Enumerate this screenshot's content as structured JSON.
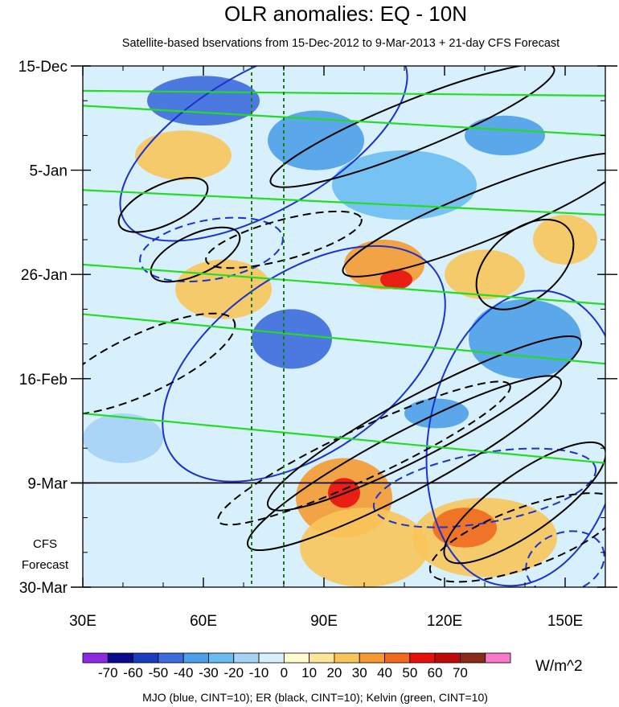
{
  "chart_data": {
    "type": "heatmap",
    "title": "OLR anomalies: EQ - 10N",
    "subtitle": "Satellite-based bservations from 15-Dec-2012 to 9-Mar-2013 + 21-day CFS Forecast",
    "x_axis": {
      "range": [
        30,
        160
      ],
      "units": "degrees longitude",
      "tick_values": [
        30,
        60,
        90,
        120,
        150
      ],
      "tick_labels": [
        "30E",
        "60E",
        "90E",
        "120E",
        "150E"
      ]
    },
    "y_axis": {
      "range_days": [
        0,
        105
      ],
      "tick_days": [
        0,
        21,
        42,
        63,
        84,
        105
      ],
      "tick_labels": [
        "15-Dec",
        "5-Jan",
        "26-Jan",
        "16-Feb",
        "9-Mar",
        "30-Mar"
      ],
      "observation_end_label": "9-Mar",
      "forecast_label_lines": [
        "CFS",
        "Forecast"
      ]
    },
    "colorbar": {
      "units": "W/m^2",
      "levels": [
        -70,
        -60,
        -50,
        -40,
        -30,
        -20,
        -10,
        0,
        10,
        20,
        30,
        40,
        50,
        60,
        70
      ],
      "colors": [
        "#8a2be2",
        "#0a0a8c",
        "#1a3dbe",
        "#3c6cdc",
        "#4d9fe8",
        "#6bbcf2",
        "#a6d2f5",
        "#d8f0fb",
        "#fffccf",
        "#fde59a",
        "#f8c55a",
        "#f59a32",
        "#f06a20",
        "#e80f0f",
        "#c00a0a",
        "#8c2a1a",
        "#f779c8"
      ]
    },
    "reference_lines": {
      "observation_end_day": 84,
      "dashed_green_longitudes": [
        72,
        80
      ]
    },
    "legend_text": "MJO (blue, CINT=10); ER (black, CINT=10); Kelvin (green, CINT=10)",
    "series": [
      {
        "name": "MJO",
        "color": "#1a33cc",
        "contour_interval": 10
      },
      {
        "name": "ER",
        "color": "#000000",
        "contour_interval": 10
      },
      {
        "name": "Kelvin",
        "color": "#22dd22",
        "contour_interval": 10
      }
    ],
    "anomaly_blobs": [
      {
        "lon": 60,
        "day": 7,
        "rlon": 14,
        "rday": 5,
        "level": -50
      },
      {
        "lon": 88,
        "day": 15,
        "rlon": 12,
        "rday": 6,
        "level": -40
      },
      {
        "lon": 110,
        "day": 24,
        "rlon": 18,
        "rday": 7,
        "level": -30
      },
      {
        "lon": 135,
        "day": 14,
        "rlon": 10,
        "rday": 4,
        "level": -40
      },
      {
        "lon": 140,
        "day": 55,
        "rlon": 14,
        "rday": 8,
        "level": -40
      },
      {
        "lon": 82,
        "day": 55,
        "rlon": 10,
        "rday": 6,
        "level": -50
      },
      {
        "lon": 118,
        "day": 70,
        "rlon": 8,
        "rday": 3,
        "level": -40
      },
      {
        "lon": 40,
        "day": 75,
        "rlon": 10,
        "rday": 5,
        "level": -20
      },
      {
        "lon": 55,
        "day": 18,
        "rlon": 12,
        "rday": 5,
        "level": 20
      },
      {
        "lon": 65,
        "day": 45,
        "rlon": 12,
        "rday": 6,
        "level": 20
      },
      {
        "lon": 105,
        "day": 40,
        "rlon": 10,
        "rday": 5,
        "level": 30
      },
      {
        "lon": 108,
        "day": 43,
        "rlon": 4,
        "rday": 2,
        "level": 50
      },
      {
        "lon": 95,
        "day": 87,
        "rlon": 12,
        "rday": 8,
        "level": 30
      },
      {
        "lon": 95,
        "day": 86,
        "rlon": 4,
        "rday": 3,
        "level": 50
      },
      {
        "lon": 100,
        "day": 97,
        "rlon": 16,
        "rday": 8,
        "level": 20
      },
      {
        "lon": 130,
        "day": 95,
        "rlon": 18,
        "rday": 8,
        "level": 20
      },
      {
        "lon": 125,
        "day": 93,
        "rlon": 8,
        "rday": 4,
        "level": 40
      },
      {
        "lon": 130,
        "day": 42,
        "rlon": 10,
        "rday": 5,
        "level": 20
      },
      {
        "lon": 150,
        "day": 35,
        "rlon": 8,
        "rday": 5,
        "level": 20
      }
    ]
  }
}
